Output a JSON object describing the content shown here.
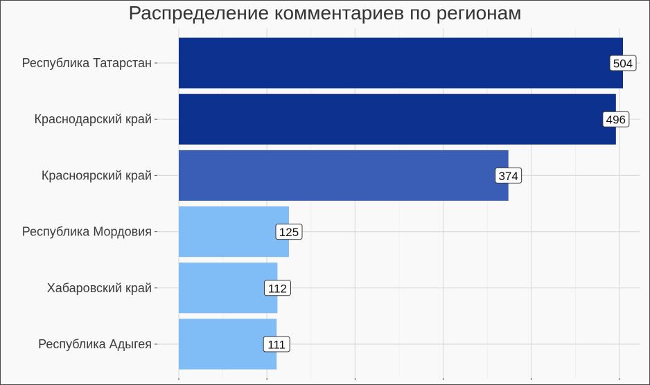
{
  "chart_data": {
    "type": "bar",
    "orientation": "horizontal",
    "title": "Распределение комментариев по регионам",
    "xlabel": "",
    "ylabel": "",
    "categories": [
      "Республика Татарстан",
      "Краснодарский край",
      "Красноярский край",
      "Республика Мордовия",
      "Хабаровский край",
      "Республика Адыгея"
    ],
    "values": [
      504,
      496,
      374,
      125,
      112,
      111
    ],
    "xlim": [
      0,
      504
    ],
    "x_gridlines": [
      0,
      100,
      200,
      300,
      400,
      500
    ],
    "x_tick_labels_shown": false,
    "grid": true,
    "legend": "none",
    "colors": [
      "#0d318f",
      "#0d318f",
      "#3a5db5",
      "#80bcf6",
      "#80bcf6",
      "#80bcf6"
    ],
    "data_labels": true
  }
}
